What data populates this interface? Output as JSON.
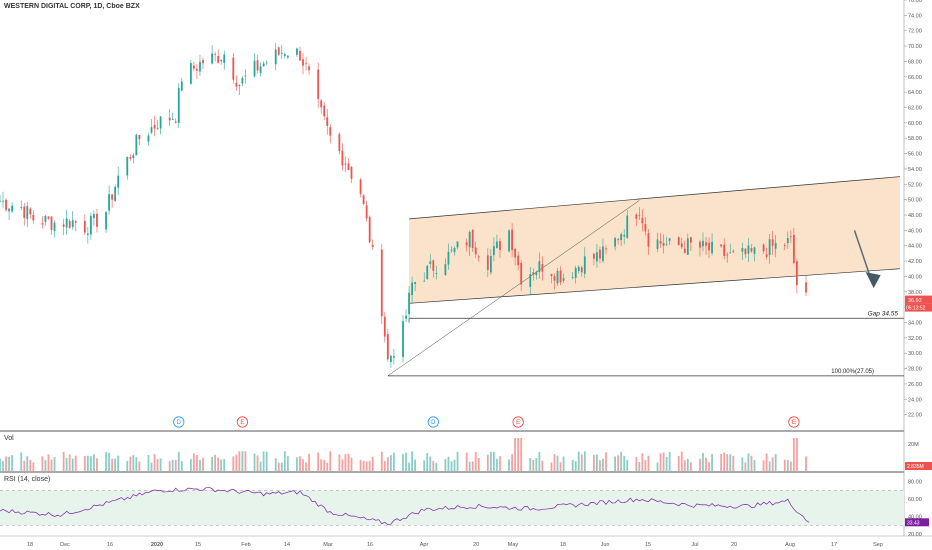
{
  "header": {
    "title": "WESTERN DIGITAL CORP, 1D, Cboe BZX"
  },
  "panes": {
    "volume_label": "Vol",
    "rsi_label": "RSI (14, close)"
  },
  "annotations": {
    "gap_label": "Gap 34.55",
    "fib_label": "100.00%(27.05)"
  },
  "price_badges": {
    "last": "36.92",
    "countdown": "05:13:52",
    "volume": "2.835M",
    "rsi": "33.43"
  },
  "events": [
    {
      "letter": "D",
      "date": "Jan 9",
      "color": "#2196f3"
    },
    {
      "letter": "E",
      "date": "Jan 30",
      "color": "#f44336"
    },
    {
      "letter": "D",
      "date": "Apr 2",
      "color": "#2196f3"
    },
    {
      "letter": "E",
      "date": "Apr 30",
      "color": "#f44336"
    },
    {
      "letter": "E",
      "date": "Jul 30",
      "color": "#f44336"
    }
  ],
  "colors": {
    "up": "#26a69a",
    "down": "#ef5350",
    "rsi_line": "#7b1fa2",
    "channel_fill": "#fbe3cb",
    "rsi_band": "#e6f4ec"
  },
  "chart_data": {
    "type": "candlestick",
    "symbol": "WESTERN DIGITAL CORP",
    "interval": "1D",
    "price_axis": {
      "ylim": [
        20,
        76
      ],
      "ticks": [
        "76.00",
        "74.00",
        "72.00",
        "70.00",
        "68.00",
        "66.00",
        "64.00",
        "62.00",
        "60.00",
        "58.00",
        "56.00",
        "54.00",
        "52.00",
        "50.00",
        "48.00",
        "46.00",
        "44.00",
        "42.00",
        "40.00",
        "38.00",
        "36.00",
        "34.00",
        "32.00",
        "30.00",
        "28.00",
        "26.00",
        "24.00",
        "22.00"
      ]
    },
    "volume_axis": {
      "ticks": [
        "20M"
      ]
    },
    "rsi_axis": {
      "ylim": [
        20,
        90
      ],
      "ticks": [
        "80.00",
        "60.00",
        "40.00",
        "20.00"
      ],
      "overbought": 70,
      "oversold": 30
    },
    "time_axis_labels": [
      "18",
      "Dec",
      "16",
      "2020",
      "15",
      "Feb",
      "14",
      "Mar",
      "16",
      "Apr",
      "20",
      "May",
      "18",
      "Jun",
      "15",
      "Jul",
      "20",
      "Aug",
      "17",
      "Sep"
    ],
    "close_path": [
      [
        "2019-11-11",
        49.8
      ],
      [
        "2019-11-18",
        49.0
      ],
      [
        "2019-11-22",
        47.5
      ],
      [
        "2019-11-29",
        47.0
      ],
      [
        "2019-12-05",
        47.2
      ],
      [
        "2019-12-09",
        46.5
      ],
      [
        "2019-12-12",
        47.0
      ],
      [
        "2019-12-16",
        48.5
      ],
      [
        "2019-12-20",
        53.0
      ],
      [
        "2019-12-27",
        58.0
      ],
      [
        "2020-01-02",
        60.0
      ],
      [
        "2020-01-08",
        61.0
      ],
      [
        "2020-01-10",
        66.0
      ],
      [
        "2020-01-17",
        68.0
      ],
      [
        "2020-01-24",
        69.0
      ],
      [
        "2020-01-29",
        65.0
      ],
      [
        "2020-02-03",
        67.0
      ],
      [
        "2020-02-07",
        68.0
      ],
      [
        "2020-02-13",
        69.5
      ],
      [
        "2020-02-18",
        69.0
      ],
      [
        "2020-02-21",
        66.0
      ],
      [
        "2020-02-24",
        62.0
      ],
      [
        "2020-02-28",
        58.0
      ],
      [
        "2020-03-04",
        55.0
      ],
      [
        "2020-03-09",
        51.0
      ],
      [
        "2020-03-12",
        45.0
      ],
      [
        "2020-03-16",
        36.0
      ],
      [
        "2020-03-18",
        29.0
      ],
      [
        "2020-03-23",
        33.0
      ],
      [
        "2020-03-26",
        39.0
      ],
      [
        "2020-04-01",
        41.0
      ],
      [
        "2020-04-08",
        43.0
      ],
      [
        "2020-04-14",
        45.0
      ],
      [
        "2020-04-20",
        42.0
      ],
      [
        "2020-04-27",
        46.0
      ],
      [
        "2020-05-01",
        40.0
      ],
      [
        "2020-05-08",
        41.5
      ],
      [
        "2020-05-15",
        40.0
      ],
      [
        "2020-05-22",
        42.0
      ],
      [
        "2020-05-29",
        43.0
      ],
      [
        "2020-06-05",
        47.0
      ],
      [
        "2020-06-09",
        49.0
      ],
      [
        "2020-06-12",
        45.0
      ],
      [
        "2020-06-19",
        44.0
      ],
      [
        "2020-06-26",
        44.0
      ],
      [
        "2020-07-02",
        43.5
      ],
      [
        "2020-07-10",
        42.5
      ],
      [
        "2020-07-17",
        43.0
      ],
      [
        "2020-07-24",
        44.0
      ],
      [
        "2020-07-29",
        44.5
      ],
      [
        "2020-07-31",
        39.0
      ],
      [
        "2020-08-03",
        37.0
      ]
    ],
    "channel": {
      "upper": [
        [
          "2020-03-25",
          47.5
        ],
        [
          "2020-09-03",
          53.0
        ]
      ],
      "lower": [
        [
          "2020-03-25",
          36.5
        ],
        [
          "2020-09-03",
          41.0
        ]
      ]
    },
    "fib_line": {
      "from": [
        "2020-03-18",
        27.05
      ],
      "to": [
        "2020-06-09",
        49.9
      ]
    },
    "gap_level": 34.55,
    "fib_level": 27.05,
    "forecast_arrow": {
      "from": [
        "2020-08-19",
        46.0
      ],
      "to": [
        "2020-08-25",
        39.0
      ]
    },
    "last_price": 36.92,
    "rsi_path": [
      [
        "2019-11-11",
        47
      ],
      [
        "2019-12-01",
        42
      ],
      [
        "2019-12-16",
        55
      ],
      [
        "2020-01-02",
        70
      ],
      [
        "2020-01-17",
        72
      ],
      [
        "2020-02-07",
        66
      ],
      [
        "2020-02-18",
        68
      ],
      [
        "2020-02-28",
        45
      ],
      [
        "2020-03-06",
        40
      ],
      [
        "2020-03-18",
        32
      ],
      [
        "2020-03-30",
        48
      ],
      [
        "2020-04-15",
        52
      ],
      [
        "2020-05-05",
        49
      ],
      [
        "2020-06-09",
        60
      ],
      [
        "2020-06-26",
        53
      ],
      [
        "2020-07-15",
        52
      ],
      [
        "2020-07-28",
        58
      ],
      [
        "2020-07-31",
        47
      ],
      [
        "2020-08-04",
        33.43
      ]
    ]
  }
}
